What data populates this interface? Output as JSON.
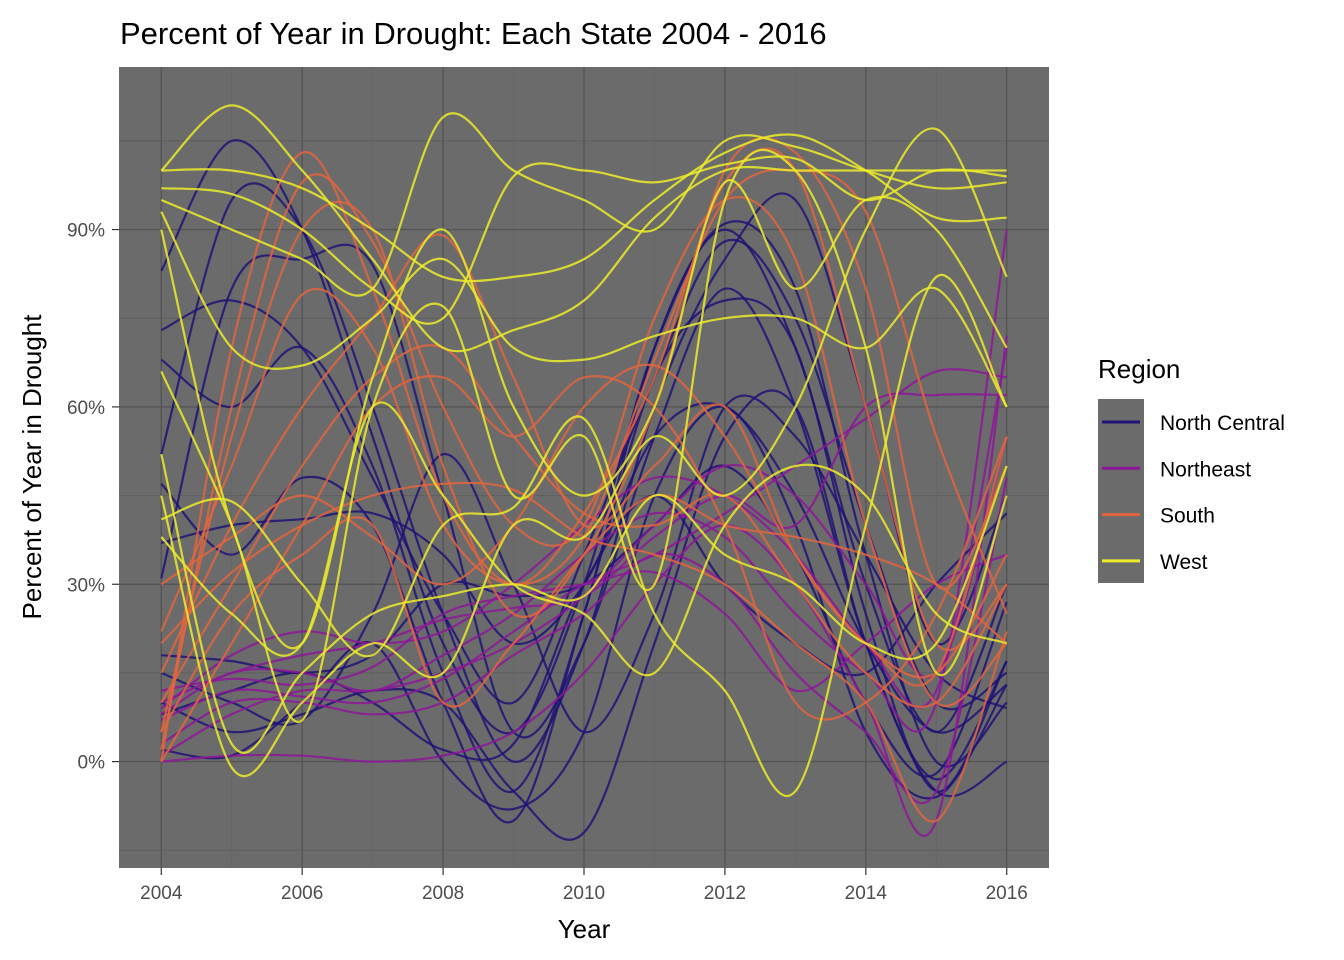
{
  "chart_data": {
    "type": "line",
    "title": "Percent of Year in Drought: Each State 2004 - 2016",
    "xlabel": "Year",
    "ylabel": "Percent of Year in Drought",
    "x": [
      2004,
      2005,
      2006,
      2007,
      2008,
      2009,
      2010,
      2011,
      2012,
      2013,
      2014,
      2015,
      2016
    ],
    "xlim": [
      2003.4,
      2016.6
    ],
    "ylim": [
      -18,
      117.5
    ],
    "x_ticks": [
      2004,
      2006,
      2008,
      2010,
      2012,
      2014,
      2016
    ],
    "x_tick_labels": [
      "2004",
      "2006",
      "2008",
      "2010",
      "2012",
      "2014",
      "2016"
    ],
    "y_ticks": [
      0,
      30,
      60,
      90
    ],
    "y_tick_labels": [
      "0%",
      "30%",
      "60%",
      "90%"
    ],
    "y_minor_ticks": [
      -15,
      15,
      45,
      75,
      105
    ],
    "grid": true,
    "panel_background": "#6b6b6b",
    "smoothing": "spline",
    "legend": {
      "title": "Region",
      "placement": "right",
      "entries": [
        {
          "name": "North Central",
          "color": "#1f1376"
        },
        {
          "name": "Northeast",
          "color": "#8c1798"
        },
        {
          "name": "South",
          "color": "#e0653f"
        },
        {
          "name": "West",
          "color": "#ecec2c"
        }
      ]
    },
    "series": [
      {
        "name": "North Central",
        "region": "North Central",
        "values": [
          83,
          105,
          90,
          55,
          20,
          5,
          30,
          70,
          90,
          70,
          30,
          5,
          30
        ]
      },
      {
        "name": "North Central",
        "region": "North Central",
        "values": [
          73,
          78,
          70,
          48,
          25,
          10,
          35,
          65,
          88,
          75,
          40,
          10,
          15
        ]
      },
      {
        "name": "North Central",
        "region": "North Central",
        "values": [
          68,
          60,
          70,
          50,
          15,
          -5,
          25,
          70,
          91,
          80,
          35,
          0,
          10
        ]
      },
      {
        "name": "North Central",
        "region": "North Central",
        "values": [
          52,
          95,
          90,
          60,
          25,
          0,
          20,
          60,
          85,
          95,
          60,
          20,
          45
        ]
      },
      {
        "name": "North Central",
        "region": "North Central",
        "values": [
          47,
          35,
          48,
          40,
          10,
          -10,
          25,
          65,
          78,
          70,
          25,
          -5,
          17
        ]
      },
      {
        "name": "North Central",
        "region": "North Central",
        "values": [
          37,
          40,
          41,
          42,
          35,
          20,
          30,
          55,
          60,
          45,
          20,
          5,
          13
        ]
      },
      {
        "name": "North Central",
        "region": "North Central",
        "values": [
          31,
          80,
          85,
          84,
          45,
          5,
          20,
          55,
          80,
          60,
          20,
          -3,
          17
        ]
      },
      {
        "name": "North Central",
        "region": "North Central",
        "values": [
          18,
          17,
          15,
          18,
          30,
          28,
          30,
          40,
          50,
          35,
          10,
          -2,
          27
        ]
      },
      {
        "name": "North Central",
        "region": "North Central",
        "values": [
          15,
          10,
          7,
          25,
          52,
          30,
          5,
          25,
          60,
          55,
          35,
          15,
          9
        ]
      },
      {
        "name": "North Central",
        "region": "North Central",
        "values": [
          10,
          5,
          8,
          12,
          10,
          -5,
          -12,
          20,
          55,
          60,
          20,
          -5,
          0
        ]
      },
      {
        "name": "North Central",
        "region": "North Central",
        "values": [
          2,
          1,
          10,
          20,
          0,
          -8,
          5,
          45,
          60,
          40,
          5,
          -6,
          13
        ]
      },
      {
        "name": "North Central",
        "region": "North Central",
        "values": [
          8,
          12,
          15,
          10,
          2,
          3,
          30,
          45,
          30,
          20,
          15,
          30,
          42
        ]
      },
      {
        "name": "Northeast",
        "region": "Northeast",
        "values": [
          0,
          1,
          1,
          0,
          1,
          5,
          15,
          30,
          40,
          30,
          10,
          -10,
          72
        ]
      },
      {
        "name": "Northeast",
        "region": "Northeast",
        "values": [
          7,
          12,
          11,
          10,
          14,
          22,
          30,
          35,
          42,
          50,
          58,
          66,
          65
        ]
      },
      {
        "name": "Northeast",
        "region": "Northeast",
        "values": [
          8,
          15,
          15,
          12,
          18,
          25,
          35,
          42,
          38,
          25,
          15,
          10,
          90
        ]
      },
      {
        "name": "Northeast",
        "region": "Northeast",
        "values": [
          9,
          18,
          22,
          20,
          22,
          30,
          40,
          48,
          45,
          35,
          20,
          12,
          70
        ]
      },
      {
        "name": "Northeast",
        "region": "Northeast",
        "values": [
          1,
          8,
          12,
          12,
          15,
          20,
          28,
          40,
          50,
          45,
          30,
          15,
          55
        ]
      },
      {
        "name": "Northeast",
        "region": "Northeast",
        "values": [
          3,
          10,
          10,
          8,
          10,
          18,
          25,
          35,
          30,
          15,
          5,
          -5,
          48
        ]
      },
      {
        "name": "Northeast",
        "region": "Northeast",
        "values": [
          10,
          15,
          18,
          20,
          24,
          26,
          28,
          38,
          45,
          40,
          60,
          62,
          62
        ]
      },
      {
        "name": "Northeast",
        "region": "Northeast",
        "values": [
          12,
          14,
          13,
          16,
          25,
          28,
          30,
          32,
          25,
          12,
          20,
          30,
          35
        ]
      },
      {
        "name": "South",
        "region": "South",
        "values": [
          0,
          70,
          103,
          80,
          45,
          30,
          42,
          65,
          98,
          100,
          60,
          20,
          30
        ]
      },
      {
        "name": "South",
        "region": "South",
        "values": [
          2,
          60,
          98,
          88,
          60,
          40,
          40,
          75,
          95,
          85,
          40,
          10,
          20
        ]
      },
      {
        "name": "South",
        "region": "South",
        "values": [
          5,
          55,
          90,
          90,
          50,
          25,
          35,
          60,
          100,
          103,
          80,
          30,
          50
        ]
      },
      {
        "name": "South",
        "region": "South",
        "values": [
          22,
          50,
          79,
          70,
          40,
          30,
          38,
          68,
          95,
          100,
          93,
          55,
          25
        ]
      },
      {
        "name": "South",
        "region": "South",
        "values": [
          15,
          40,
          60,
          75,
          89,
          65,
          40,
          50,
          60,
          35,
          20,
          15,
          55
        ]
      },
      {
        "name": "South",
        "region": "South",
        "values": [
          10,
          30,
          50,
          65,
          70,
          55,
          42,
          40,
          45,
          30,
          15,
          10,
          30
        ]
      },
      {
        "name": "South",
        "region": "South",
        "values": [
          20,
          32,
          40,
          45,
          47,
          46,
          38,
          35,
          30,
          20,
          10,
          -10,
          22
        ]
      },
      {
        "name": "South",
        "region": "South",
        "values": [
          30,
          38,
          45,
          38,
          30,
          40,
          60,
          67,
          55,
          35,
          20,
          15,
          35
        ]
      },
      {
        "name": "South",
        "region": "South",
        "values": [
          0,
          20,
          40,
          60,
          65,
          55,
          65,
          60,
          40,
          10,
          10,
          25,
          55
        ]
      },
      {
        "name": "South",
        "region": "South",
        "values": [
          5,
          25,
          35,
          40,
          10,
          20,
          35,
          45,
          40,
          38,
          35,
          30,
          20
        ]
      },
      {
        "name": "West",
        "region": "West",
        "values": [
          100,
          111,
          100,
          85,
          70,
          73,
          78,
          92,
          100,
          100,
          100,
          100,
          100
        ]
      },
      {
        "name": "West",
        "region": "West",
        "values": [
          97,
          96,
          90,
          80,
          75,
          99,
          100,
          98,
          101,
          102,
          95,
          100,
          99
        ]
      },
      {
        "name": "West",
        "region": "West",
        "values": [
          95,
          90,
          85,
          80,
          109,
          100,
          95,
          90,
          105,
          104,
          100,
          97,
          98
        ]
      },
      {
        "name": "West",
        "region": "West",
        "values": [
          100,
          100,
          97,
          90,
          82,
          82,
          85,
          95,
          103,
          106,
          100,
          92,
          92
        ]
      },
      {
        "name": "West",
        "region": "West",
        "values": [
          93,
          70,
          67,
          75,
          85,
          70,
          68,
          72,
          75,
          75,
          70,
          80,
          60
        ]
      },
      {
        "name": "West",
        "region": "West",
        "values": [
          90,
          40,
          20,
          65,
          90,
          60,
          45,
          60,
          98,
          80,
          95,
          90,
          70
        ]
      },
      {
        "name": "West",
        "region": "West",
        "values": [
          66,
          40,
          7,
          60,
          77,
          45,
          55,
          30,
          95,
          100,
          70,
          15,
          45
        ]
      },
      {
        "name": "West",
        "region": "West",
        "values": [
          41,
          44,
          30,
          18,
          40,
          43,
          58,
          25,
          12,
          -5,
          40,
          82,
          60
        ]
      },
      {
        "name": "West",
        "region": "West",
        "values": [
          52,
          3,
          15,
          25,
          28,
          30,
          28,
          45,
          35,
          30,
          20,
          20,
          50
        ]
      },
      {
        "name": "West",
        "region": "West",
        "values": [
          45,
          -1,
          10,
          20,
          15,
          40,
          38,
          55,
          45,
          60,
          90,
          107,
          82
        ]
      },
      {
        "name": "West",
        "region": "West",
        "values": [
          38,
          25,
          20,
          60,
          45,
          30,
          25,
          15,
          40,
          50,
          45,
          25,
          20
        ]
      }
    ]
  }
}
